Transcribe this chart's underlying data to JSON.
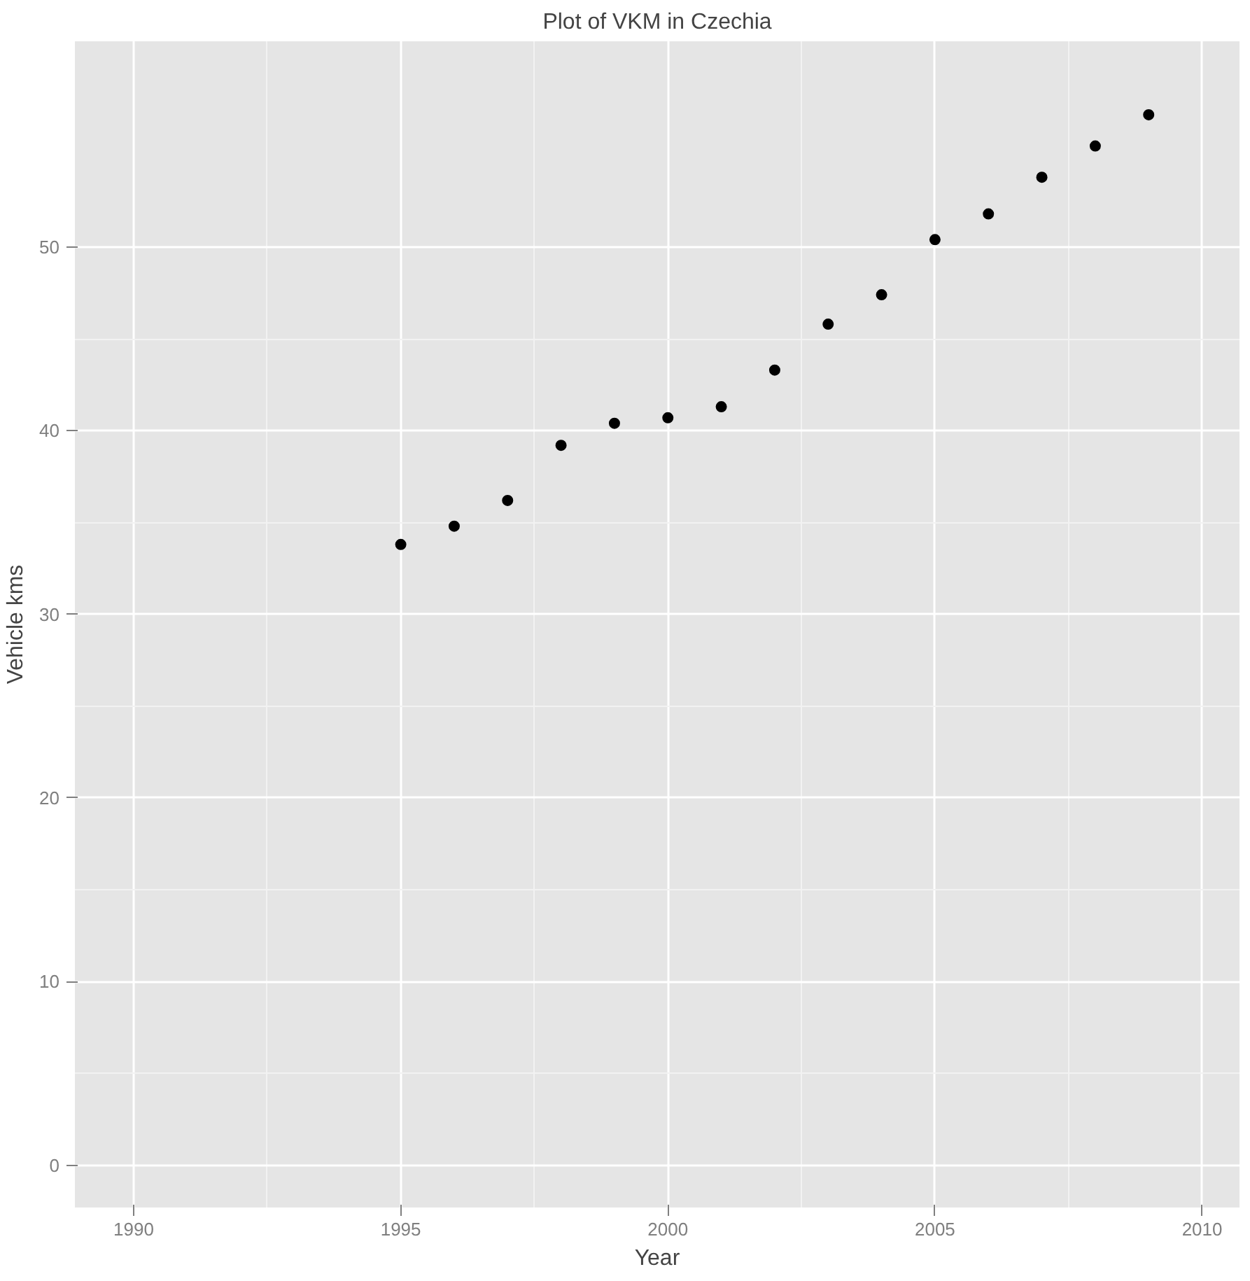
{
  "chart_data": {
    "type": "scatter",
    "title": "Plot of VKM in Czechia",
    "xlabel": "Year",
    "ylabel": "Vehicle kms",
    "x": [
      1995,
      1996,
      1997,
      1998,
      1999,
      2000,
      2001,
      2002,
      2003,
      2004,
      2005,
      2006,
      2007,
      2008,
      2009
    ],
    "series": [
      {
        "color": "#000000",
        "values": [
          33.8,
          34.8,
          36.2,
          39.2,
          40.4,
          40.7,
          41.3,
          43.3,
          45.8,
          47.4,
          50.4,
          51.8,
          53.8,
          55.5,
          57.2
        ]
      }
    ],
    "xlim": [
      1988.9,
      2010.7
    ],
    "ylim": [
      -2.3,
      61.2
    ],
    "xticks": [
      1990,
      1995,
      2000,
      2005,
      2010
    ],
    "yticks": [
      0,
      10,
      20,
      30,
      40,
      50
    ],
    "grid": true,
    "marker": "circle"
  }
}
